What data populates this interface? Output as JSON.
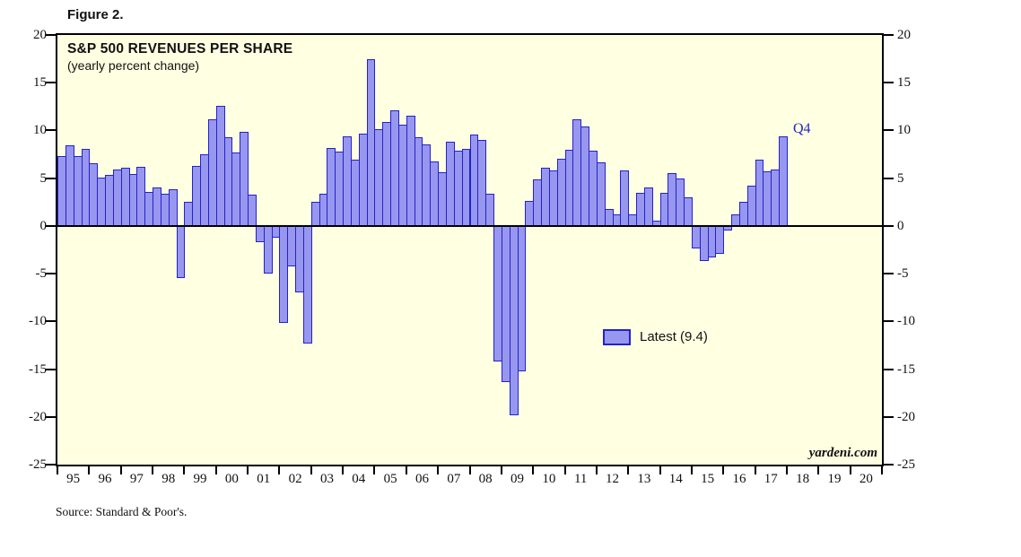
{
  "figure_label": "Figure 2.",
  "chart": {
    "title": "S&P 500 REVENUES PER SHARE",
    "subtitle": "(yearly percent change)",
    "legend_label": "Latest (9.4)",
    "latest_annotation": "Q4",
    "watermark": "yardeni.com",
    "source": "Source: Standard & Poor's."
  },
  "chart_data": {
    "type": "bar",
    "title": "S&P 500 REVENUES PER SHARE",
    "subtitle": "(yearly percent change)",
    "frequency": "quarterly",
    "start_period": "1995Q1",
    "end_period": "2017Q4",
    "x_axis_year_labels": [
      "95",
      "96",
      "97",
      "98",
      "99",
      "00",
      "01",
      "02",
      "03",
      "04",
      "05",
      "06",
      "07",
      "08",
      "09",
      "10",
      "11",
      "12",
      "13",
      "14",
      "15",
      "16",
      "17",
      "18",
      "19",
      "20"
    ],
    "x_axis_years_with_data": 23,
    "x_axis_total_year_slots": 26,
    "ylim": [
      -25,
      20
    ],
    "yticks": [
      20,
      15,
      10,
      5,
      0,
      -5,
      -10,
      -15,
      -20,
      -25
    ],
    "grid": "none",
    "zero_line": true,
    "legend_position": "center-right-inside",
    "latest_value": 9.4,
    "latest_label": "Q4",
    "series": [
      {
        "name": "S&P 500 revenues per share (yearly percent change)",
        "values": [
          7.3,
          8.4,
          7.3,
          8.1,
          6.6,
          5.1,
          5.3,
          5.9,
          6.1,
          5.4,
          6.2,
          3.6,
          4.0,
          3.4,
          3.8,
          -5.5,
          2.5,
          6.3,
          7.5,
          11.2,
          12.6,
          9.3,
          7.7,
          9.9,
          3.3,
          -1.7,
          -5.0,
          -1.2,
          -10.2,
          -4.2,
          -7.0,
          -12.3,
          2.5,
          3.4,
          8.2,
          7.8,
          9.4,
          6.9,
          9.7,
          17.5,
          10.1,
          10.9,
          12.1,
          10.6,
          11.5,
          9.3,
          8.5,
          6.8,
          5.6,
          8.8,
          7.9,
          8.1,
          9.6,
          9.0,
          3.4,
          -14.2,
          -16.4,
          -19.8,
          -15.2,
          2.6,
          4.9,
          6.1,
          5.8,
          7.0,
          8.0,
          11.2,
          10.4,
          7.9,
          6.7,
          1.8,
          1.2,
          5.8,
          1.2,
          3.5,
          4.0,
          0.6,
          3.5,
          5.5,
          5.0,
          3.0,
          -2.4,
          -3.7,
          -3.3,
          -2.9,
          -0.5,
          1.2,
          2.5,
          4.2,
          6.9,
          5.7,
          5.9,
          9.4
        ]
      }
    ]
  },
  "colors": {
    "plot_background": "#FFFFE2",
    "bar_fill": "#9897F0",
    "bar_border": "#2222CC",
    "axis": "#000000",
    "annotation_blue": "#2222CC",
    "text": "#111111"
  }
}
